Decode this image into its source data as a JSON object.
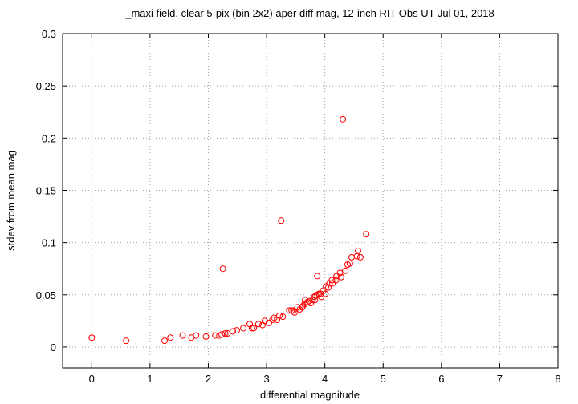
{
  "chart_data": {
    "type": "scatter",
    "title": "_maxi field, clear 5-pix (bin 2x2) aper diff mag,  12-inch RIT Obs UT Jul 01, 2018",
    "x_label": "differential magnitude",
    "y_label": "stdev from mean mag",
    "xlim": [
      -0.5,
      8
    ],
    "ylim": [
      -0.02,
      0.3
    ],
    "xticks": [
      0,
      1,
      2,
      3,
      4,
      5,
      6,
      7,
      8
    ],
    "yticks": [
      0,
      0.05,
      0.1,
      0.15,
      0.2,
      0.25,
      0.3
    ],
    "grid": true,
    "color": "#ff0000",
    "x": [
      0,
      0.59,
      1.25,
      1.35,
      1.56,
      1.71,
      1.79,
      1.96,
      2.12,
      2.19,
      2.23,
      2.25,
      2.29,
      2.33,
      2.42,
      2.49,
      2.6,
      2.71,
      2.75,
      2.78,
      2.86,
      2.93,
      2.97,
      3.04,
      3.1,
      3.13,
      3.18,
      3.22,
      3.25,
      3.28,
      3.39,
      3.43,
      3.46,
      3.48,
      3.53,
      3.57,
      3.61,
      3.62,
      3.65,
      3.66,
      3.7,
      3.73,
      3.76,
      3.79,
      3.82,
      3.83,
      3.84,
      3.87,
      3.87,
      3.9,
      3.93,
      3.94,
      3.97,
      4.01,
      4.02,
      4.06,
      4.08,
      4.12,
      4.13,
      4.19,
      4.2,
      4.26,
      4.28,
      4.31,
      4.35,
      4.39,
      4.43,
      4.46,
      4.55,
      4.57,
      4.61,
      4.71
    ],
    "values": [
      0.009,
      0.006,
      0.006,
      0.009,
      0.011,
      0.009,
      0.011,
      0.01,
      0.011,
      0.011,
      0.012,
      0.075,
      0.013,
      0.013,
      0.015,
      0.016,
      0.018,
      0.022,
      0.018,
      0.018,
      0.022,
      0.021,
      0.025,
      0.023,
      0.026,
      0.028,
      0.026,
      0.03,
      0.121,
      0.029,
      0.035,
      0.035,
      0.035,
      0.033,
      0.038,
      0.036,
      0.038,
      0.039,
      0.041,
      0.045,
      0.043,
      0.044,
      0.042,
      0.045,
      0.048,
      0.045,
      0.049,
      0.068,
      0.05,
      0.051,
      0.051,
      0.048,
      0.054,
      0.051,
      0.058,
      0.057,
      0.061,
      0.064,
      0.061,
      0.064,
      0.068,
      0.071,
      0.067,
      0.218,
      0.073,
      0.079,
      0.08,
      0.086,
      0.087,
      0.092,
      0.086,
      0.108
    ]
  }
}
